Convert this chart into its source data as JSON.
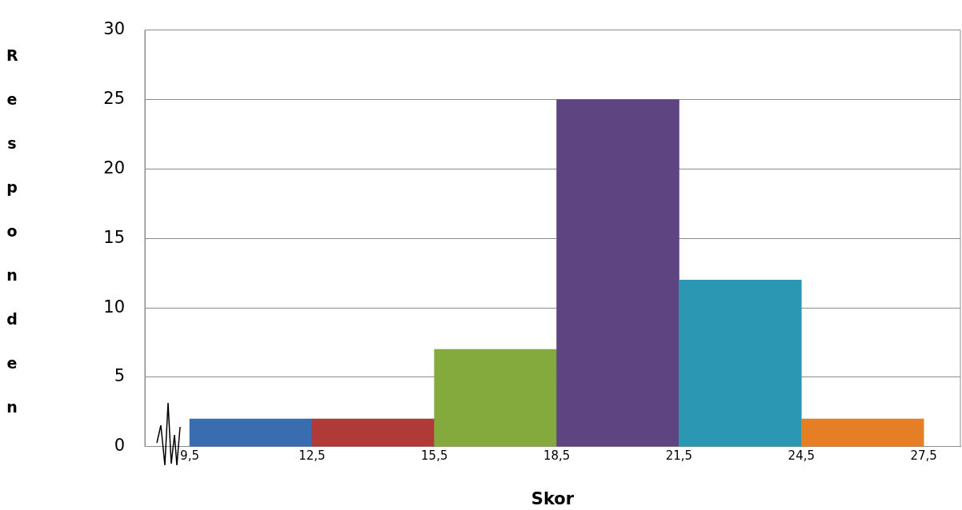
{
  "chart_data": {
    "type": "histogram",
    "xlabel": "Skor",
    "ylabel": "Responden",
    "bins": [
      9.5,
      12.5,
      15.5,
      18.5,
      21.5,
      24.5,
      27.5
    ],
    "values": [
      2,
      2,
      7,
      25,
      12,
      2
    ],
    "colors": [
      "#3a6cb0",
      "#b03a38",
      "#84aa3e",
      "#5e4582",
      "#2b97b3",
      "#e57e25"
    ],
    "xlim": [
      8.4,
      28.4
    ],
    "xticks": [
      {
        "value": 9.5,
        "label": "9,5"
      },
      {
        "value": 12.5,
        "label": "12,5"
      },
      {
        "value": 15.5,
        "label": "15,5"
      },
      {
        "value": 18.5,
        "label": "18,5"
      },
      {
        "value": 21.5,
        "label": "21,5"
      },
      {
        "value": 24.5,
        "label": "24,5"
      },
      {
        "value": 27.5,
        "label": "27,5"
      }
    ],
    "ylim": [
      0,
      30
    ],
    "yticks": [
      0,
      5,
      10,
      15,
      20,
      25,
      30
    ],
    "grid": "y",
    "legend": false
  }
}
